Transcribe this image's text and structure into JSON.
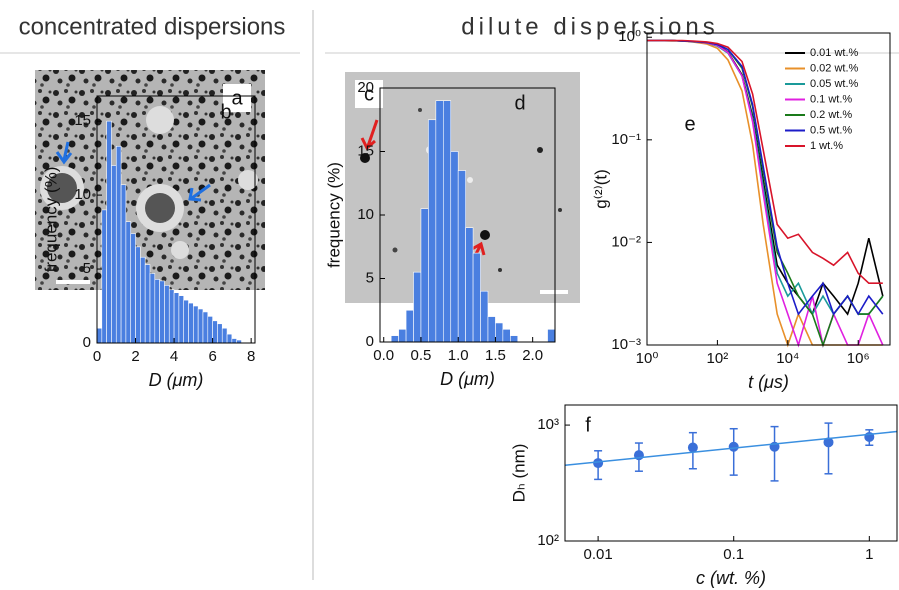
{
  "headers": {
    "left": "concentrated dispersions",
    "right": "dilute dispersions"
  },
  "images": [
    {
      "label": "a"
    },
    {
      "label": "c"
    }
  ],
  "chart_data": [
    {
      "type": "histogram",
      "label": "b",
      "xlabel": "D (μm)",
      "ylabel": "frequency (%)",
      "color": "#4a7fe0",
      "bins": [
        0,
        0.25,
        0.5,
        0.75,
        1,
        1.25,
        1.5,
        1.75,
        2,
        2.25,
        2.5,
        2.75,
        3,
        3.25,
        3.5,
        3.75,
        4,
        4.25,
        4.5,
        4.75,
        5,
        5.25,
        5.5,
        5.75,
        6,
        6.25,
        6.5,
        6.75,
        7,
        7.25,
        7.5
      ],
      "values": [
        1,
        9,
        15,
        12,
        13.3,
        10.7,
        8.2,
        7.4,
        6.5,
        5.8,
        5.3,
        4.7,
        4.3,
        4.2,
        3.9,
        3.6,
        3.4,
        3.2,
        2.9,
        2.7,
        2.5,
        2.3,
        2.1,
        1.8,
        1.5,
        1.3,
        1.0,
        0.6,
        0.3,
        0.2
      ],
      "xlim": [
        0,
        8.2
      ],
      "xticks": [
        0,
        2,
        4,
        6,
        8
      ],
      "ylim": [
        0,
        16.7
      ],
      "yticks": [
        0,
        5,
        10,
        15
      ]
    },
    {
      "type": "histogram",
      "label": "d",
      "xlabel": "D (μm)",
      "ylabel": "frequency (%)",
      "color": "#4a7fe0",
      "bins": [
        0.1,
        0.2,
        0.3,
        0.4,
        0.5,
        0.6,
        0.7,
        0.8,
        0.9,
        1.0,
        1.1,
        1.2,
        1.3,
        1.4,
        1.5,
        1.6,
        1.7,
        1.8,
        1.9,
        2.0,
        2.1,
        2.2,
        2.3
      ],
      "values": [
        0.5,
        1,
        2.5,
        5.5,
        10.5,
        17.5,
        19,
        19,
        15,
        13.5,
        9,
        7,
        4,
        2,
        1.5,
        1,
        0.5,
        0,
        0,
        0,
        0,
        1
      ],
      "xlim": [
        -0.05,
        2.3
      ],
      "xticks": [
        {
          "value": 0,
          "label": "0.0"
        },
        {
          "value": 0.5,
          "label": "0.5"
        },
        {
          "value": 1,
          "label": "1.0"
        },
        {
          "value": 1.5,
          "label": "1.5"
        },
        {
          "value": 2,
          "label": "2.0"
        }
      ],
      "ylim": [
        0,
        20
      ],
      "yticks": [
        0,
        5,
        10,
        15,
        20
      ]
    },
    {
      "type": "line",
      "label": "e",
      "xlabel": "t (μs)",
      "ylabel": "g⁽²⁾(t)",
      "log_x": true,
      "log_y": true,
      "legend": "upper-right",
      "x": [
        1,
        2,
        5,
        10,
        20,
        50,
        100,
        200,
        500,
        1000,
        2000,
        5000,
        10000,
        20000,
        50000,
        100000,
        200000,
        500000,
        1000000,
        2000000,
        5000000
      ],
      "series": [
        {
          "name": "0.01 wt.%",
          "color": "#000000",
          "values": [
            0.93,
            0.93,
            0.93,
            0.92,
            0.91,
            0.88,
            0.83,
            0.72,
            0.43,
            0.17,
            0.04,
            0.006,
            0.004,
            0.003,
            0.002,
            0.004,
            0.003,
            0.002,
            0.004,
            0.011,
            0.003
          ]
        },
        {
          "name": "0.02 wt.%",
          "color": "#e8902a",
          "values": [
            0.93,
            0.93,
            0.92,
            0.92,
            0.9,
            0.86,
            0.78,
            0.6,
            0.3,
            0.09,
            0.015,
            0.002,
            0.001,
            0.002,
            0.001,
            0.001,
            0.001,
            0.001,
            0.001,
            0.001,
            0.001
          ]
        },
        {
          "name": "0.05 wt.%",
          "color": "#1a9a9a",
          "values": [
            0.93,
            0.93,
            0.93,
            0.92,
            0.91,
            0.88,
            0.82,
            0.7,
            0.42,
            0.16,
            0.035,
            0.005,
            0.003,
            0.004,
            0.002,
            0.003,
            0.002,
            0.003,
            0.002,
            0.002,
            0.003
          ]
        },
        {
          "name": "0.1 wt.%",
          "color": "#e020e0",
          "values": [
            0.93,
            0.93,
            0.93,
            0.92,
            0.91,
            0.88,
            0.83,
            0.71,
            0.42,
            0.15,
            0.03,
            0.004,
            0.002,
            0.001,
            0.003,
            0.001,
            0.002,
            0.001,
            0.001,
            0.002,
            0.001
          ]
        },
        {
          "name": "0.2 wt.%",
          "color": "#1a7a1a",
          "values": [
            0.93,
            0.93,
            0.93,
            0.92,
            0.91,
            0.89,
            0.85,
            0.76,
            0.5,
            0.21,
            0.05,
            0.008,
            0.005,
            0.003,
            0.002,
            0.001,
            0.002,
            0.003,
            0.002,
            0.002,
            0.003
          ]
        },
        {
          "name": "0.5 wt.%",
          "color": "#1c1cc8",
          "values": [
            0.93,
            0.93,
            0.93,
            0.92,
            0.91,
            0.89,
            0.85,
            0.76,
            0.52,
            0.22,
            0.055,
            0.009,
            0.004,
            0.002,
            0.003,
            0.004,
            0.002,
            0.003,
            0.002,
            0.003,
            0.002
          ]
        },
        {
          "name": "1 wt.%",
          "color": "#d8142a",
          "values": [
            0.93,
            0.93,
            0.93,
            0.93,
            0.92,
            0.9,
            0.87,
            0.8,
            0.58,
            0.28,
            0.08,
            0.015,
            0.011,
            0.012,
            0.008,
            0.007,
            0.006,
            0.008,
            0.005,
            0.004,
            0.004
          ]
        }
      ],
      "xlim": [
        1,
        8000000
      ],
      "xticks": [
        {
          "value": 1,
          "label": "10⁰"
        },
        {
          "value": 100,
          "label": "10²"
        },
        {
          "value": 10000,
          "label": "10⁴"
        },
        {
          "value": 1000000,
          "label": "10⁶"
        }
      ],
      "ylim": [
        0.001,
        1.1
      ],
      "yticks": [
        {
          "value": 0.001,
          "label": "10⁻³"
        },
        {
          "value": 0.01,
          "label": "10⁻²"
        },
        {
          "value": 0.1,
          "label": "10⁻¹"
        },
        {
          "value": 1,
          "label": "10⁰"
        }
      ]
    },
    {
      "type": "scatter",
      "label": "f",
      "xlabel": "c (wt. %)",
      "ylabel": "Dₕ (nm)",
      "log_x": true,
      "log_y": true,
      "series": [
        {
          "mode": "markers",
          "color": "#3a6fd8",
          "x": [
            0.01,
            0.02,
            0.05,
            0.1,
            0.2,
            0.5,
            1
          ],
          "values": [
            470,
            550,
            640,
            650,
            650,
            710,
            790
          ],
          "errors": [
            130,
            150,
            220,
            280,
            320,
            330,
            120
          ]
        },
        {
          "mode": "line",
          "color": "#3a8fe0",
          "x": [
            0.0057,
            1.6
          ],
          "values": [
            450,
            880
          ]
        }
      ],
      "xlim": [
        0.0057,
        1.6
      ],
      "xticks": [
        0.01,
        0.1,
        1
      ],
      "ylim": [
        100,
        1490
      ],
      "yticks": [
        {
          "value": 100,
          "label": "10²"
        },
        {
          "value": 1000,
          "label": "10³"
        }
      ]
    }
  ]
}
